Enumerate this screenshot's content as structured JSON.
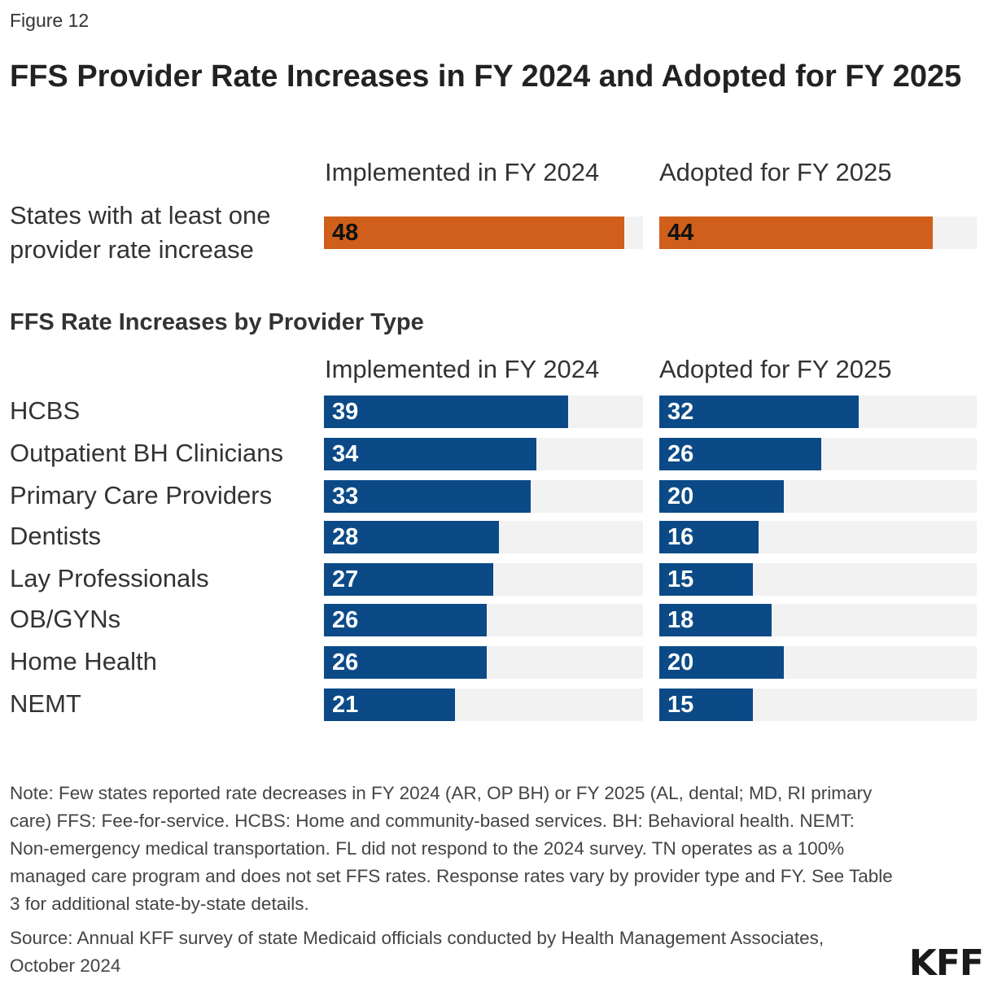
{
  "figure_label": "Figure 12",
  "title": "FFS Provider Rate Increases in FY 2024 and Adopted for FY 2025",
  "chart_data": [
    {
      "type": "bar",
      "orientation": "horizontal",
      "columns": [
        "Implemented in FY 2024",
        "Adopted for FY 2025"
      ],
      "categories": [
        "States with at least one provider rate increase"
      ],
      "series": [
        {
          "name": "Implemented in FY 2024",
          "values": [
            48
          ]
        },
        {
          "name": "Adopted for FY 2025",
          "values": [
            44
          ]
        }
      ],
      "xlim": [
        0,
        51
      ],
      "color": "#cf5f1a",
      "label_color": "#111111"
    },
    {
      "type": "bar",
      "orientation": "horizontal",
      "title": "FFS Rate Increases by Provider Type",
      "columns": [
        "Implemented in FY 2024",
        "Adopted for FY 2025"
      ],
      "categories": [
        "HCBS",
        "Outpatient BH Clinicians",
        "Primary Care Providers",
        "Dentists",
        "Lay Professionals",
        "OB/GYNs",
        "Home Health",
        "NEMT"
      ],
      "series": [
        {
          "name": "Implemented in FY 2024",
          "values": [
            39,
            34,
            33,
            28,
            27,
            26,
            26,
            21
          ]
        },
        {
          "name": "Adopted for FY 2025",
          "values": [
            32,
            26,
            20,
            16,
            15,
            18,
            20,
            15
          ]
        }
      ],
      "xlim": [
        0,
        51
      ],
      "color": "#0b4a87",
      "label_color": "#ffffff"
    }
  ],
  "track_color": "#f2f2f2",
  "note": "Note: Few states reported rate decreases in FY 2024 (AR, OP BH) or FY 2025 (AL, dental; MD, RI primary care) FFS: Fee-for-service. HCBS: Home and community-based services. BH: Behavioral health. NEMT: Non-emergency medical transportation. FL did not respond to the 2024 survey. TN operates as a 100% managed care program and does not set FFS rates. Response rates vary by provider type and FY. See Table 3 for additional state-by-state details.",
  "source": "Source: Annual KFF survey of state Medicaid officials conducted by Health Management Associates, October 2024",
  "logo": "KFF"
}
